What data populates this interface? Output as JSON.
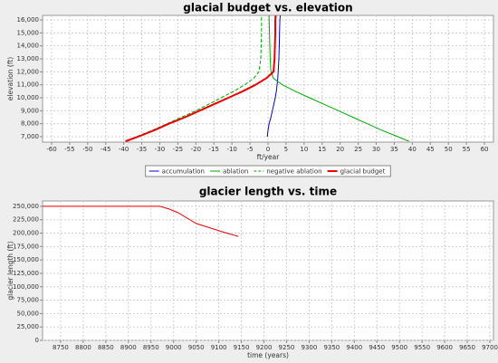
{
  "chart_data": [
    {
      "type": "line",
      "title": "glacial budget vs. elevation",
      "x_label": "ft/year",
      "y_label": "elevation (ft)",
      "y": [
        6650,
        7000,
        7500,
        8000,
        8500,
        9000,
        9500,
        10000,
        10500,
        11000,
        11500,
        12000,
        13000,
        14000,
        15000,
        16000,
        16350
      ],
      "series": [
        {
          "name": "accumulation",
          "color": "#0000cc",
          "width": 1,
          "dash": false,
          "values": [
            null,
            -0.2,
            0,
            0.3,
            0.8,
            1.2,
            1.6,
            2.0,
            2.3,
            2.5,
            2.7,
            2.8,
            3.0,
            3.1,
            3.2,
            3.3,
            3.4
          ]
        },
        {
          "name": "ablation",
          "color": "#00aa00",
          "width": 1,
          "dash": false,
          "values": [
            39,
            36,
            31.5,
            27.5,
            23.5,
            19.5,
            15.5,
            11.5,
            7.5,
            4,
            1.5,
            0.8,
            0.6,
            0.5,
            0.4,
            0.3,
            0.3
          ]
        },
        {
          "name": "negative ablation",
          "color": "#00aa00",
          "width": 1,
          "dash": true,
          "values": [
            -39,
            -36.5,
            -32,
            -28,
            -24,
            -20,
            -16.5,
            -13,
            -9.5,
            -6.5,
            -4,
            -2.5,
            -2,
            -1.9,
            -1.8,
            -1.8,
            -1.8
          ]
        },
        {
          "name": "glacial budget",
          "color": "#ee0000",
          "width": 2,
          "dash": false,
          "values": [
            -39.5,
            -36,
            -31.5,
            -27.5,
            -23,
            -19,
            -15,
            -11,
            -7,
            -3.5,
            -0.5,
            1.5,
            1.8,
            1.9,
            2.0,
            2.0,
            2.1
          ]
        }
      ],
      "xlim": [
        -62.5,
        62.5
      ],
      "xticks": [
        -60,
        -55,
        -50,
        -45,
        -40,
        -35,
        -30,
        -25,
        -20,
        -15,
        -10,
        -5,
        0,
        5,
        10,
        15,
        20,
        25,
        30,
        35,
        40,
        45,
        50,
        55,
        60
      ],
      "ylim": [
        6580,
        16350
      ],
      "yticks": [
        {
          "value": 7000,
          "label": "7,000"
        },
        {
          "value": 8000,
          "label": "8,000"
        },
        {
          "value": 9000,
          "label": "9,000"
        },
        {
          "value": 10000,
          "label": "10,000"
        },
        {
          "value": 11000,
          "label": "11,000"
        },
        {
          "value": 12000,
          "label": "12,000"
        },
        {
          "value": 13000,
          "label": "13,000"
        },
        {
          "value": 14000,
          "label": "14,000"
        },
        {
          "value": 15000,
          "label": "15,000"
        },
        {
          "value": 16000,
          "label": "16,000"
        }
      ],
      "grid": true,
      "legend": "bottom"
    },
    {
      "type": "line",
      "title": "glacier length vs. time",
      "x_label": "time (years)",
      "y_label": "glacier length (ft)",
      "x": [
        8710,
        8970,
        8990,
        9010,
        9030,
        9050,
        9080,
        9110,
        9143
      ],
      "color": "#ee0000",
      "values": [
        250000,
        250000,
        245000,
        238000,
        228000,
        218000,
        210000,
        202000,
        194000
      ],
      "xlim": [
        8710,
        9708
      ],
      "xticks": [
        8750,
        8800,
        8850,
        8900,
        8950,
        9000,
        9050,
        9100,
        9150,
        9200,
        9250,
        9300,
        9350,
        9400,
        9450,
        9500,
        9550,
        9600,
        9650,
        9700
      ],
      "ylim": [
        0,
        260000
      ],
      "yticks": [
        0,
        {
          "value": 25000,
          "label": "25,000"
        },
        {
          "value": 50000,
          "label": "50,000"
        },
        {
          "value": 75000,
          "label": "75,000"
        },
        {
          "value": 100000,
          "label": "100,000"
        },
        {
          "value": 125000,
          "label": "125,000"
        },
        {
          "value": 150000,
          "label": "150,000"
        },
        {
          "value": 175000,
          "label": "175,000"
        },
        {
          "value": 200000,
          "label": "200,000"
        },
        {
          "value": 225000,
          "label": "225,000"
        },
        {
          "value": 250000,
          "label": "250,000"
        }
      ],
      "grid": true
    }
  ]
}
